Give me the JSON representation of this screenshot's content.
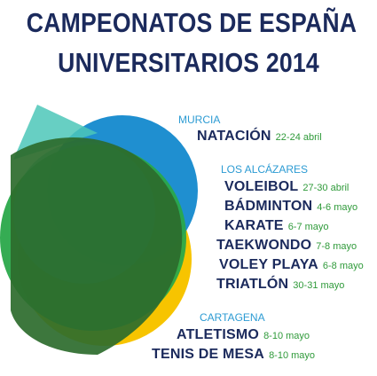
{
  "title": {
    "line1": "CAMPEONATOS DE ESPAÑA",
    "line2": "UNIVERSITARIOS 2014"
  },
  "colors": {
    "title": "#1b2a5c",
    "venue": "#2c9bd3",
    "date": "#2f9a3a",
    "shape_blue": "#1f8fd0",
    "shape_yellow": "#f7c400",
    "shape_green": "#2aa84a",
    "shape_teal": "#1fb8a8",
    "shape_darkgreen": "#2c6b2c"
  },
  "venues": [
    {
      "name": "MURCIA",
      "events": [
        {
          "sport": "NATACIÓN",
          "dates": "22-24 abril"
        }
      ]
    },
    {
      "name": "LOS ALCÁZARES",
      "events": [
        {
          "sport": "VOLEIBOL",
          "dates": "27-30 abril"
        },
        {
          "sport": "BÁDMINTON",
          "dates": "4-6 mayo"
        },
        {
          "sport": "KARATE",
          "dates": "6-7 mayo"
        },
        {
          "sport": "TAEKWONDO",
          "dates": "7-8 mayo"
        },
        {
          "sport": "VOLEY PLAYA",
          "dates": "6-8 mayo"
        },
        {
          "sport": "TRIATLÓN",
          "dates": "30-31 mayo"
        }
      ]
    },
    {
      "name": "CARTAGENA",
      "events": [
        {
          "sport": "ATLETISMO",
          "dates": "8-10 mayo"
        },
        {
          "sport": "TENIS DE MESA",
          "dates": "8-10 mayo"
        }
      ]
    }
  ]
}
